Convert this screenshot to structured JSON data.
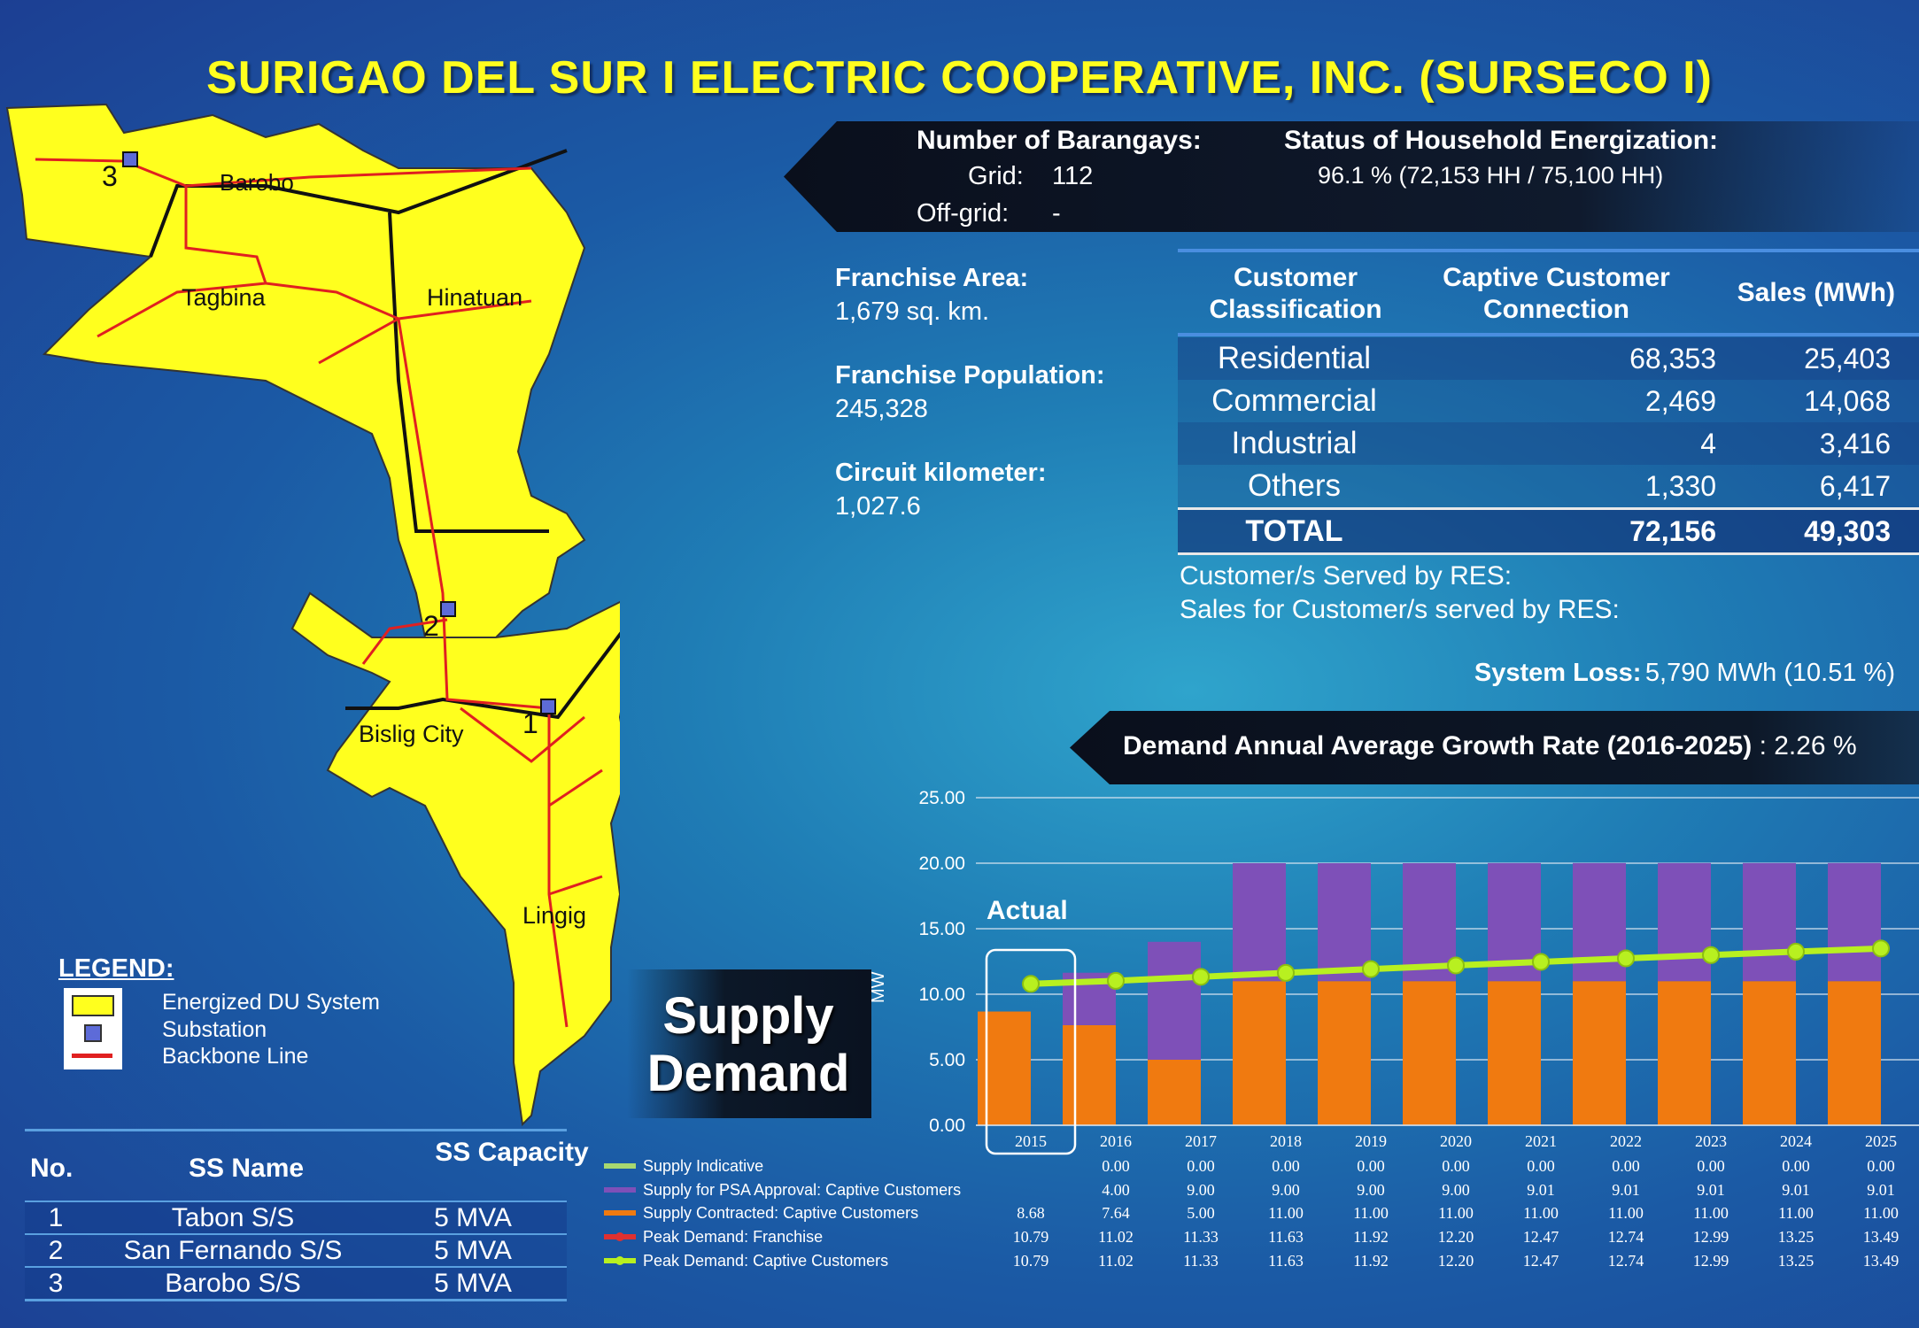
{
  "title": "SURIGAO DEL SUR I ELECTRIC COOPERATIVE, INC. (SURSECO I)",
  "barangays": {
    "label": "Number of Barangays:",
    "grid_label": "Grid:",
    "grid_value": "112",
    "offgrid_label": "Off-grid:",
    "offgrid_value": "-"
  },
  "energization": {
    "label": "Status of Household Energization:",
    "value": "96.1 % (72,153 HH / 75,100 HH)"
  },
  "franchise_area": {
    "label": "Franchise Area:",
    "value": "1,679 sq. km."
  },
  "franchise_population": {
    "label": "Franchise Population:",
    "value": "245,328"
  },
  "circuit_km": {
    "label": "Circuit kilometer:",
    "value": "1,027.6"
  },
  "customer_table": {
    "headers": [
      "Customer Classification",
      "Captive Customer Connection",
      "Sales (MWh)"
    ],
    "rows": [
      {
        "cls": "Residential",
        "conn": "68,353",
        "sales": "25,403"
      },
      {
        "cls": "Commercial",
        "conn": "2,469",
        "sales": "14,068"
      },
      {
        "cls": "Industrial",
        "conn": "4",
        "sales": "3,416"
      },
      {
        "cls": "Others",
        "conn": "1,330",
        "sales": "6,417"
      }
    ],
    "total": {
      "cls": "TOTAL",
      "conn": "72,156",
      "sales": "49,303"
    }
  },
  "res_customers": "Customer/s Served by RES:",
  "res_sales": "Sales for Customer/s served by RES:",
  "system_loss": {
    "label": "System Loss:",
    "value": "5,790 MWh (10.51 %)"
  },
  "growth": {
    "label": "Demand Annual Average Growth Rate (2016-2025)",
    "value": ": 2.26 %"
  },
  "map": {
    "labels": {
      "barobo": "Barobo",
      "tagbina": "Tagbina",
      "hinatuan": "Hinatuan",
      "bislig": "Bislig City",
      "lingig": "Lingig",
      "s1": "1",
      "s2": "2",
      "s3": "3"
    }
  },
  "legend": {
    "title": "LEGEND:",
    "items": [
      "Energized DU System",
      "Substation",
      "Backbone Line"
    ]
  },
  "ss_table": {
    "headers": [
      "No.",
      "SS Name",
      "SS Capacity"
    ],
    "rows": [
      {
        "no": "1",
        "name": "Tabon S/S",
        "cap": "5 MVA"
      },
      {
        "no": "2",
        "name": "San Fernando S/S",
        "cap": "5 MVA"
      },
      {
        "no": "3",
        "name": "Barobo S/S",
        "cap": "5 MVA"
      }
    ]
  },
  "supply_demand_label": {
    "line1": "Supply",
    "line2": "Demand"
  },
  "colors": {
    "title": "#ffff1e",
    "orange": "#f07a10",
    "purple": "#7e50b8",
    "green": "#b8f020",
    "red": "#e03030",
    "map_fill": "#ffff1e"
  },
  "chart_data": {
    "type": "bar",
    "ylabel": "MW",
    "ylim": [
      0,
      25
    ],
    "yticks": [
      "0.00",
      "5.00",
      "10.00",
      "15.00",
      "20.00",
      "25.00"
    ],
    "annotation": "Actual",
    "categories": [
      "2015",
      "2016",
      "2017",
      "2018",
      "2019",
      "2020",
      "2021",
      "2022",
      "2023",
      "2024",
      "2025"
    ],
    "series": [
      {
        "name": "Supply Indicative",
        "kind": "bar",
        "values": [
          null,
          0,
          0,
          0,
          0,
          0,
          0,
          0,
          0,
          0,
          0
        ],
        "labels": [
          "",
          "0.00",
          "0.00",
          "0.00",
          "0.00",
          "0.00",
          "0.00",
          "0.00",
          "0.00",
          "0.00",
          "0.00"
        ]
      },
      {
        "name": "Supply for PSA Approval:  Captive Customers",
        "kind": "bar",
        "values": [
          null,
          4,
          9,
          9,
          9,
          9,
          9.01,
          9.01,
          9.01,
          9.01,
          9.01
        ],
        "labels": [
          "",
          "4.00",
          "9.00",
          "9.00",
          "9.00",
          "9.00",
          "9.01",
          "9.01",
          "9.01",
          "9.01",
          "9.01"
        ]
      },
      {
        "name": "Supply Contracted:  Captive Customers",
        "kind": "bar",
        "values": [
          8.68,
          7.64,
          5,
          11,
          11,
          11,
          11,
          11,
          11,
          11,
          11
        ],
        "labels": [
          "8.68",
          "7.64",
          "5.00",
          "11.00",
          "11.00",
          "11.00",
          "11.00",
          "11.00",
          "11.00",
          "11.00",
          "11.00"
        ]
      },
      {
        "name": "Peak Demand:  Franchise",
        "kind": "line",
        "values": [
          10.79,
          11.02,
          11.33,
          11.63,
          11.92,
          12.2,
          12.47,
          12.74,
          12.99,
          13.25,
          13.49
        ],
        "labels": [
          "10.79",
          "11.02",
          "11.33",
          "11.63",
          "11.92",
          "12.20",
          "12.47",
          "12.74",
          "12.99",
          "13.25",
          "13.49"
        ]
      },
      {
        "name": "Peak Demand:  Captive Customers",
        "kind": "line",
        "values": [
          10.79,
          11.02,
          11.33,
          11.63,
          11.92,
          12.2,
          12.47,
          12.74,
          12.99,
          13.25,
          13.49
        ],
        "labels": [
          "10.79",
          "11.02",
          "11.33",
          "11.63",
          "11.92",
          "12.20",
          "12.47",
          "12.74",
          "12.99",
          "13.25",
          "13.49"
        ]
      }
    ]
  }
}
